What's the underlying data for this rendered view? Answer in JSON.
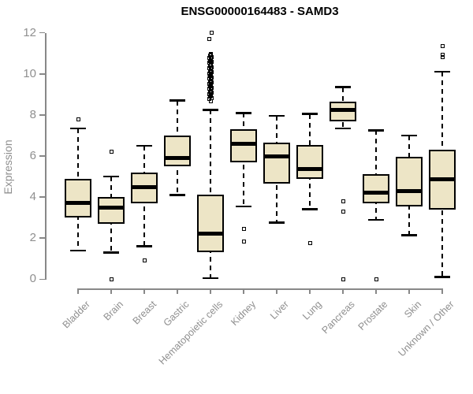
{
  "title": "ENSG00000164483 - SAMD3",
  "colors": {
    "box_fill": "#ede5c6",
    "box_border": "#000000",
    "axis_line": "#888888",
    "axis_text": "#8f8f8f",
    "title_text": "#000000"
  },
  "chart_data": {
    "type": "boxplot",
    "title": "ENSG00000164483 - SAMD3",
    "xlabel": "",
    "ylabel": "Expression",
    "ylim": [
      0,
      12
    ],
    "yticks": [
      0,
      2,
      4,
      6,
      8,
      10,
      12
    ],
    "grid": false,
    "legend": false,
    "categories": [
      "Bladder",
      "Brain",
      "Breast",
      "Gastric",
      "Hematopoietic cells",
      "Kidney",
      "Liver",
      "Lung",
      "Pancreas",
      "Prostate",
      "Skin",
      "Unknown / Other"
    ],
    "series": [
      {
        "name": "Bladder",
        "low": 1.4,
        "q1": 3.0,
        "median": 3.7,
        "q3": 4.9,
        "high": 7.35,
        "outliers": [
          7.8
        ]
      },
      {
        "name": "Brain",
        "low": 1.3,
        "q1": 2.7,
        "median": 3.5,
        "q3": 4.0,
        "high": 5.0,
        "outliers": [
          6.2,
          0.0
        ]
      },
      {
        "name": "Breast",
        "low": 1.6,
        "q1": 3.7,
        "median": 4.5,
        "q3": 5.2,
        "high": 6.5,
        "outliers": [
          0.9
        ]
      },
      {
        "name": "Gastric",
        "low": 4.1,
        "q1": 5.5,
        "median": 5.9,
        "q3": 7.0,
        "high": 8.7,
        "outliers": []
      },
      {
        "name": "Hematopoietic cells",
        "low": 0.05,
        "q1": 1.3,
        "median": 2.2,
        "q3": 4.1,
        "high": 8.25,
        "outliers": [
          8.65,
          8.78,
          8.83,
          8.88,
          8.93,
          8.98,
          9.03,
          9.08,
          9.13,
          9.18,
          9.23,
          9.28,
          9.33,
          9.38,
          9.43,
          9.48,
          9.53,
          9.58,
          9.63,
          9.68,
          9.73,
          9.78,
          9.83,
          9.88,
          9.93,
          9.98,
          10.03,
          10.08,
          10.13,
          10.18,
          10.23,
          10.28,
          10.33,
          10.38,
          10.43,
          10.48,
          10.53,
          10.58,
          10.63,
          10.68,
          10.73,
          10.78,
          10.83,
          10.88,
          10.93,
          10.98,
          11.7,
          12.0
        ]
      },
      {
        "name": "Kidney",
        "low": 3.55,
        "q1": 5.7,
        "median": 6.6,
        "q3": 7.3,
        "high": 8.1,
        "outliers": [
          2.45,
          1.85
        ]
      },
      {
        "name": "Liver",
        "low": 2.75,
        "q1": 4.65,
        "median": 6.0,
        "q3": 6.65,
        "high": 7.95,
        "outliers": []
      },
      {
        "name": "Lung",
        "low": 3.4,
        "q1": 4.9,
        "median": 5.35,
        "q3": 6.55,
        "high": 8.05,
        "outliers": [
          1.75
        ]
      },
      {
        "name": "Pancreas",
        "low": 7.35,
        "q1": 7.7,
        "median": 8.25,
        "q3": 8.65,
        "high": 9.35,
        "outliers": [
          3.8,
          3.3,
          0.0
        ]
      },
      {
        "name": "Prostate",
        "low": 2.9,
        "q1": 3.7,
        "median": 4.2,
        "q3": 5.1,
        "high": 7.25,
        "outliers": [
          0.0
        ]
      },
      {
        "name": "Skin",
        "low": 2.15,
        "q1": 3.55,
        "median": 4.3,
        "q3": 5.95,
        "high": 7.0,
        "outliers": []
      },
      {
        "name": "Unknown / Other",
        "low": 0.1,
        "q1": 3.4,
        "median": 4.85,
        "q3": 6.3,
        "high": 10.1,
        "outliers": [
          11.35,
          10.95,
          10.8
        ]
      }
    ]
  }
}
